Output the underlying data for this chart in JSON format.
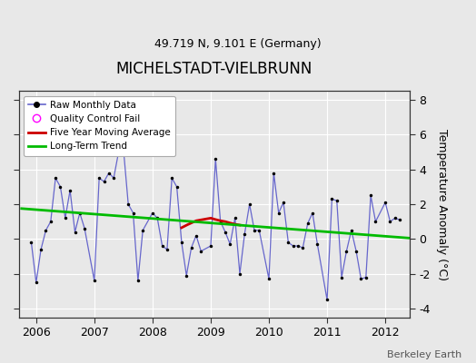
{
  "title": "MICHELSTADT-VIELBRUNN",
  "subtitle": "49.719 N, 9.101 E (Germany)",
  "ylabel": "Temperature Anomaly (°C)",
  "credit": "Berkeley Earth",
  "ylim": [
    -4.5,
    8.5
  ],
  "xlim": [
    2005.7,
    2012.42
  ],
  "yticks": [
    -4,
    -2,
    0,
    2,
    4,
    6,
    8
  ],
  "xtick_years": [
    2006,
    2007,
    2008,
    2009,
    2010,
    2011,
    2012
  ],
  "bg_color": "#e8e8e8",
  "raw_x": [
    2005.917,
    2006.0,
    2006.083,
    2006.167,
    2006.25,
    2006.333,
    2006.417,
    2006.5,
    2006.583,
    2006.667,
    2006.75,
    2006.833,
    2007.0,
    2007.083,
    2007.167,
    2007.25,
    2007.333,
    2007.417,
    2007.5,
    2007.583,
    2007.667,
    2007.75,
    2007.833,
    2008.0,
    2008.083,
    2008.167,
    2008.25,
    2008.333,
    2008.417,
    2008.5,
    2008.583,
    2008.667,
    2008.75,
    2008.833,
    2009.0,
    2009.083,
    2009.167,
    2009.25,
    2009.333,
    2009.417,
    2009.5,
    2009.583,
    2009.667,
    2009.75,
    2009.833,
    2010.0,
    2010.083,
    2010.167,
    2010.25,
    2010.333,
    2010.417,
    2010.5,
    2010.583,
    2010.667,
    2010.75,
    2010.833,
    2011.0,
    2011.083,
    2011.167,
    2011.25,
    2011.333,
    2011.417,
    2011.5,
    2011.583,
    2011.667,
    2011.75,
    2011.833,
    2012.0,
    2012.083,
    2012.167,
    2012.25
  ],
  "raw_y": [
    -0.2,
    -2.5,
    -0.6,
    0.5,
    1.0,
    3.5,
    3.0,
    1.2,
    2.8,
    0.4,
    1.5,
    0.6,
    -2.4,
    3.5,
    3.3,
    3.8,
    3.5,
    5.0,
    5.2,
    2.0,
    1.5,
    -2.4,
    0.5,
    1.5,
    1.2,
    -0.4,
    -0.6,
    3.5,
    3.0,
    -0.2,
    -2.1,
    -0.5,
    0.2,
    -0.7,
    -0.4,
    4.6,
    1.0,
    0.4,
    -0.3,
    1.2,
    -2.0,
    0.3,
    2.0,
    0.5,
    0.5,
    -2.3,
    3.8,
    1.5,
    2.1,
    -0.2,
    -0.4,
    -0.4,
    -0.5,
    0.9,
    1.5,
    -0.3,
    -3.5,
    2.3,
    2.2,
    -2.2,
    -0.7,
    0.5,
    -0.7,
    -2.3,
    -2.2,
    2.5,
    1.0,
    2.1,
    1.0,
    1.2,
    1.1
  ],
  "ma_x": [
    2008.5,
    2008.6,
    2008.75,
    2008.917,
    2009.0,
    2009.083,
    2009.167,
    2009.25,
    2009.333,
    2009.417,
    2009.5
  ],
  "ma_y": [
    0.65,
    0.82,
    1.05,
    1.15,
    1.2,
    1.12,
    1.05,
    1.0,
    0.92,
    0.85,
    0.8
  ],
  "trend_x": [
    2005.75,
    2012.42
  ],
  "trend_y": [
    1.75,
    0.05
  ],
  "raw_line_color": "#6666cc",
  "dot_color": "#000000",
  "ma_color": "#cc0000",
  "trend_color": "#00bb00",
  "title_fontsize": 12,
  "subtitle_fontsize": 9,
  "axis_fontsize": 9,
  "credit_fontsize": 8,
  "grid_color": "#ffffff"
}
